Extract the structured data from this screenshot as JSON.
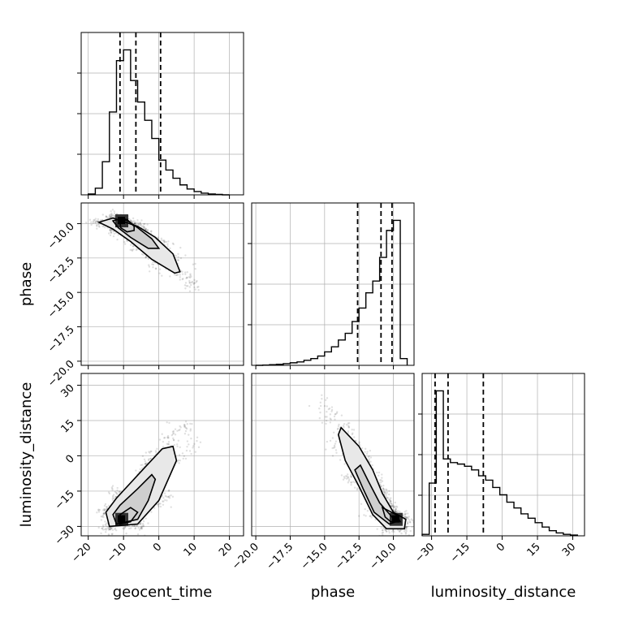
{
  "chart_data": {
    "type": "corner",
    "parameters": [
      "geocent_time",
      "phase",
      "luminosity_distance"
    ],
    "axis_labels": {
      "geocent_time": "geocent_time",
      "phase": "phase",
      "luminosity_distance": "luminosity_distance"
    },
    "ticks": {
      "geocent_time": {
        "values": [
          -20,
          -10,
          0,
          10,
          20
        ],
        "labels": [
          "−20",
          "−10",
          "0",
          "10",
          "20"
        ],
        "range": [
          -22,
          24
        ]
      },
      "phase": {
        "values": [
          -20,
          -17.5,
          -15,
          -12.5,
          -10
        ],
        "labels": [
          "−20.0",
          "−17.5",
          "−15.0",
          "−12.5",
          "−10.0"
        ],
        "range": [
          -20.3,
          -8.5
        ]
      },
      "luminosity_distance": {
        "values": [
          -30,
          -15,
          0,
          15,
          30
        ],
        "labels": [
          "−30",
          "−15",
          "0",
          "15",
          "30"
        ],
        "range": [
          -34,
          35
        ]
      }
    },
    "grid": true,
    "quantile_lines": {
      "geocent_time": [
        -11,
        -6.5,
        0.5
      ],
      "phase": [
        -12.6,
        -10.9,
        -10.1
      ],
      "luminosity_distance": [
        -28.5,
        -23,
        -8
      ]
    },
    "histograms": {
      "geocent_time": {
        "edges": [
          -20,
          -18,
          -16,
          -14,
          -12,
          -10,
          -8,
          -6,
          -4,
          -2,
          0,
          2,
          4,
          6,
          8,
          10,
          12,
          14,
          16,
          18,
          20
        ],
        "counts": [
          1,
          8,
          40,
          100,
          162,
          175,
          138,
          112,
          90,
          68,
          42,
          30,
          20,
          12,
          7,
          4,
          2,
          1,
          0.5,
          0
        ]
      },
      "phase": {
        "edges": [
          -20,
          -19.5,
          -19,
          -18.5,
          -18,
          -17.5,
          -17,
          -16.5,
          -16,
          -15.5,
          -15,
          -14.5,
          -14,
          -13.5,
          -13,
          -12.5,
          -12,
          -11.5,
          -11,
          -10.5,
          -10,
          -9.5,
          -9
        ],
        "counts": [
          0,
          0.3,
          0.8,
          1.2,
          2,
          3,
          4,
          6,
          8,
          11,
          16,
          22,
          30,
          38,
          52,
          68,
          86,
          100,
          128,
          160,
          172,
          8
        ]
      },
      "luminosity_distance": {
        "edges": [
          -34,
          -31,
          -28,
          -25,
          -22,
          -19,
          -16,
          -13,
          -10,
          -7,
          -4,
          -1,
          2,
          5,
          8,
          11,
          14,
          17,
          20,
          23,
          26,
          29,
          32
        ],
        "counts": [
          2,
          72,
          198,
          105,
          100,
          98,
          95,
          90,
          82,
          76,
          66,
          56,
          46,
          38,
          30,
          24,
          18,
          12,
          7,
          4,
          2,
          1
        ]
      }
    },
    "contour_paths": {
      "geocent_time__phase": [
        [
          [
            -17,
            -9.9
          ],
          [
            -13,
            -9.6
          ],
          [
            -6,
            -10.2
          ],
          [
            -1,
            -11.0
          ],
          [
            4,
            -12.2
          ],
          [
            6,
            -13.5
          ],
          [
            4.5,
            -13.6
          ],
          [
            -2,
            -12.6
          ],
          [
            -8,
            -11.3
          ],
          [
            -13,
            -10.4
          ],
          [
            -17,
            -9.9
          ]
        ],
        [
          [
            -13,
            -9.8
          ],
          [
            -10,
            -9.6
          ],
          [
            -6,
            -10.3
          ],
          [
            -2,
            -11.1
          ],
          [
            0,
            -11.8
          ],
          [
            -3,
            -11.8
          ],
          [
            -8,
            -11.0
          ],
          [
            -11.5,
            -10.3
          ],
          [
            -13,
            -9.8
          ]
        ],
        [
          [
            -11,
            -9.9
          ],
          [
            -9,
            -9.7
          ],
          [
            -7,
            -10.2
          ],
          [
            -7,
            -10.5
          ],
          [
            -9,
            -10.6
          ],
          [
            -10.8,
            -10.3
          ],
          [
            -11,
            -9.9
          ]
        ]
      ],
      "geocent_time__luminosity_distance": [
        [
          [
            -14,
            -30
          ],
          [
            -6,
            -29
          ],
          [
            0,
            -19
          ],
          [
            5,
            -2
          ],
          [
            4,
            4
          ],
          [
            1,
            3
          ],
          [
            -4,
            -5
          ],
          [
            -12,
            -18
          ],
          [
            -15,
            -24
          ],
          [
            -14,
            -30
          ]
        ],
        [
          [
            -12,
            -29
          ],
          [
            -6,
            -27
          ],
          [
            -3,
            -19
          ],
          [
            -1,
            -10
          ],
          [
            -2,
            -8
          ],
          [
            -6,
            -14
          ],
          [
            -11,
            -21
          ],
          [
            -13,
            -25
          ],
          [
            -12,
            -29
          ]
        ],
        [
          [
            -11,
            -29
          ],
          [
            -8,
            -28
          ],
          [
            -6,
            -24
          ],
          [
            -8,
            -22
          ],
          [
            -11,
            -25
          ],
          [
            -11,
            -29
          ]
        ]
      ],
      "phase__luminosity_distance": [
        [
          [
            -13.8,
            12
          ],
          [
            -12.5,
            4
          ],
          [
            -11.5,
            -6
          ],
          [
            -10.8,
            -16
          ],
          [
            -10,
            -24
          ],
          [
            -9.1,
            -27
          ],
          [
            -9.2,
            -31
          ],
          [
            -10.5,
            -31
          ],
          [
            -11.5,
            -25
          ],
          [
            -12.5,
            -13
          ],
          [
            -13.5,
            -2
          ],
          [
            -14,
            9
          ],
          [
            -13.8,
            12
          ]
        ],
        [
          [
            -12.4,
            -4
          ],
          [
            -11.8,
            -11
          ],
          [
            -11,
            -20
          ],
          [
            -9.8,
            -28
          ],
          [
            -10.3,
            -29
          ],
          [
            -11.4,
            -24
          ],
          [
            -12.2,
            -14
          ],
          [
            -12.8,
            -6
          ],
          [
            -12.4,
            -4
          ]
        ],
        [
          [
            -10.8,
            -22
          ],
          [
            -9.8,
            -25
          ],
          [
            -9.5,
            -28
          ],
          [
            -10.2,
            -28
          ],
          [
            -10.6,
            -26
          ],
          [
            -10.8,
            -22
          ]
        ]
      ]
    },
    "density_peaks": {
      "geocent_time__phase": {
        "x": -10.5,
        "y": -9.8,
        "sx": 3.5,
        "sy": 0.6
      },
      "geocent_time__luminosity_distance": {
        "x": -10.5,
        "y": -27,
        "sx": 3.0,
        "sy": 3.0
      },
      "phase__luminosity_distance": {
        "x": -9.8,
        "y": -27,
        "sx": 0.7,
        "sy": 4.0
      }
    },
    "colors": {
      "line": "#000000",
      "grid": "#b0b0b0",
      "scatter": "#000000"
    }
  }
}
